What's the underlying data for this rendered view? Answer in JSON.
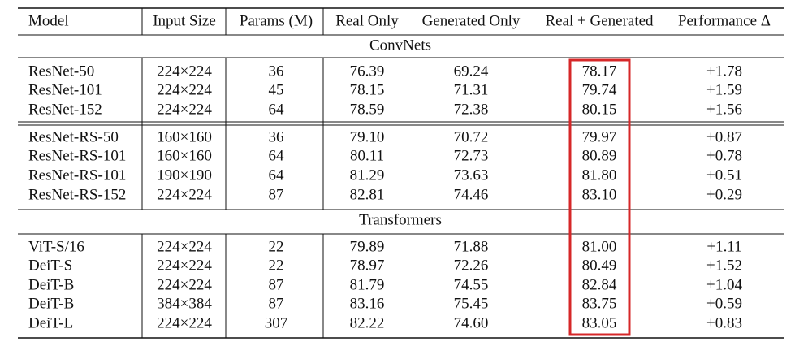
{
  "table": {
    "header": [
      "Model",
      "Input Size",
      "Params (M)",
      "Real Only",
      "Generated Only",
      "Real + Generated",
      "Performance Δ"
    ],
    "sections": [
      {
        "name": "ConvNets",
        "groups": [
          [
            [
              "ResNet-50",
              "224×224",
              "36",
              "76.39",
              "69.24",
              "78.17",
              "+1.78"
            ],
            [
              "ResNet-101",
              "224×224",
              "45",
              "78.15",
              "71.31",
              "79.74",
              "+1.59"
            ],
            [
              "ResNet-152",
              "224×224",
              "64",
              "78.59",
              "72.38",
              "80.15",
              "+1.56"
            ]
          ],
          [
            [
              "ResNet-RS-50",
              "160×160",
              "36",
              "79.10",
              "70.72",
              "79.97",
              "+0.87"
            ],
            [
              "ResNet-RS-101",
              "160×160",
              "64",
              "80.11",
              "72.73",
              "80.89",
              "+0.78"
            ],
            [
              "ResNet-RS-101",
              "190×190",
              "64",
              "81.29",
              "73.63",
              "81.80",
              "+0.51"
            ],
            [
              "ResNet-RS-152",
              "224×224",
              "87",
              "82.81",
              "74.46",
              "83.10",
              "+0.29"
            ]
          ]
        ]
      },
      {
        "name": "Transformers",
        "groups": [
          [
            [
              "ViT-S/16",
              "224×224",
              "22",
              "79.89",
              "71.88",
              "81.00",
              "+1.11"
            ],
            [
              "DeiT-S",
              "224×224",
              "22",
              "78.97",
              "72.26",
              "80.49",
              "+1.52"
            ],
            [
              "DeiT-B",
              "224×224",
              "87",
              "81.79",
              "74.55",
              "82.84",
              "+1.04"
            ],
            [
              "DeiT-B",
              "384×384",
              "87",
              "83.16",
              "75.45",
              "83.75",
              "+0.59"
            ],
            [
              "DeiT-L",
              "224×224",
              "307",
              "82.22",
              "74.60",
              "83.05",
              "+0.83"
            ]
          ]
        ]
      }
    ]
  }
}
